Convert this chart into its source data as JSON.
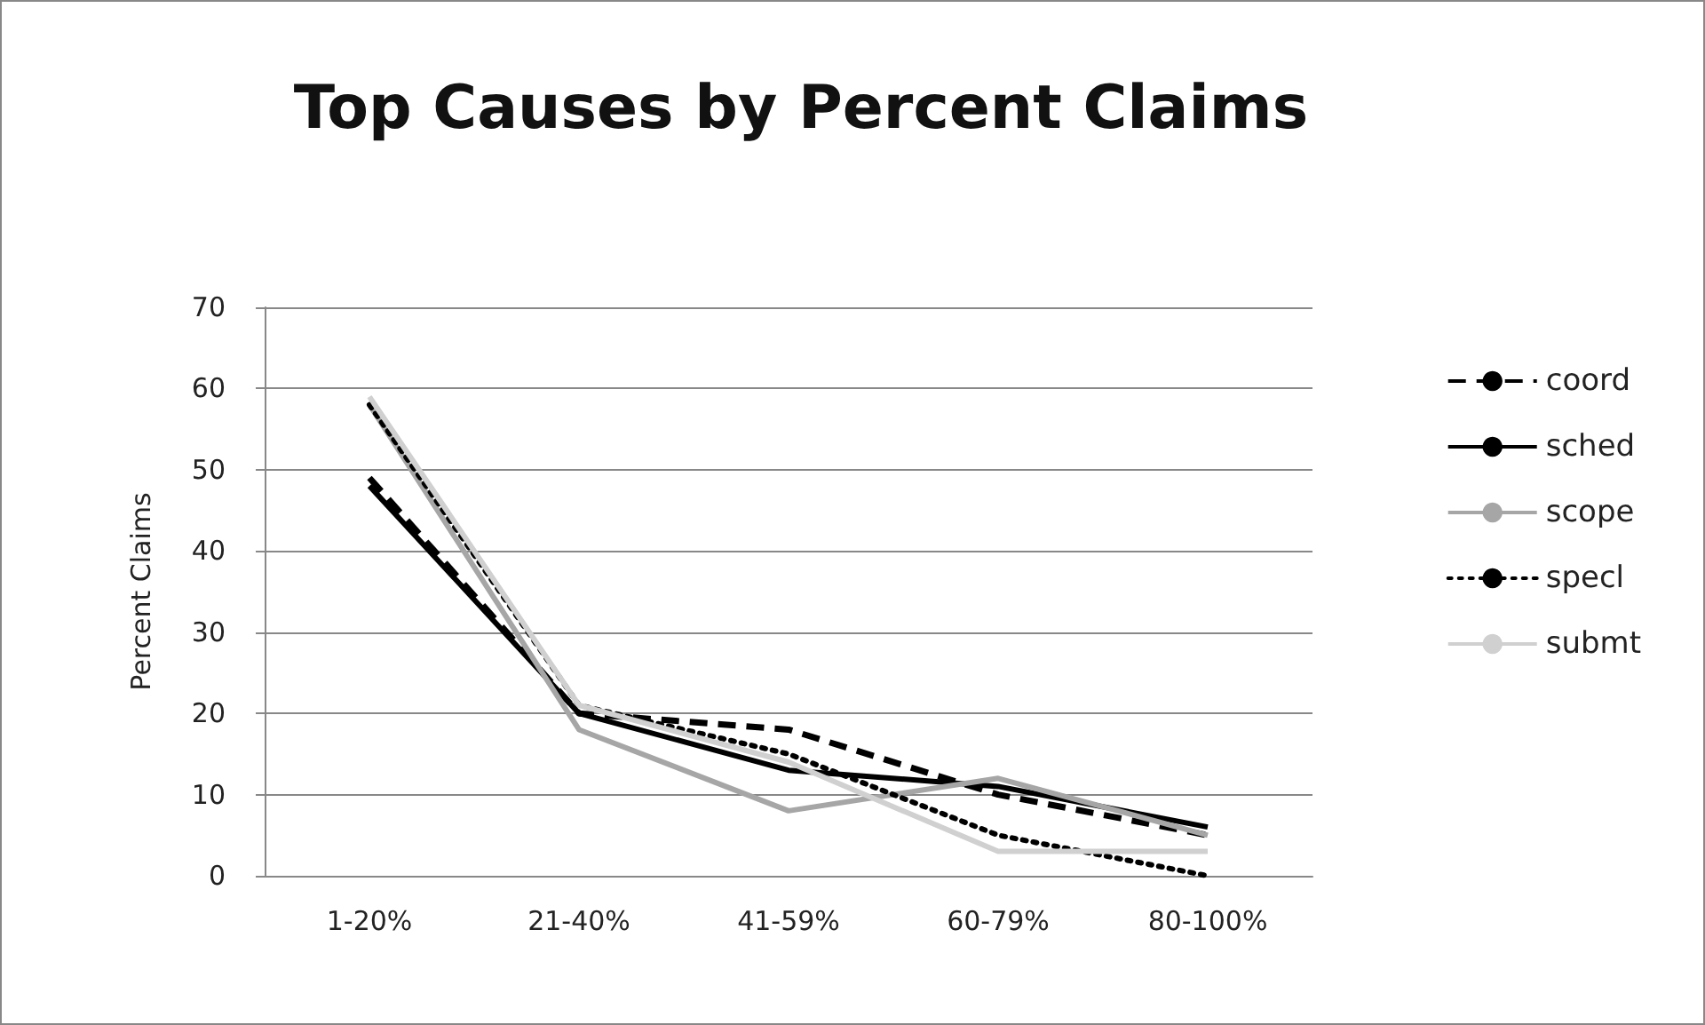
{
  "chart_data": {
    "type": "line",
    "title": "Top Causes by Percent Claims",
    "ylabel": "Percent Claims",
    "categories": [
      "1-20%",
      "21-40%",
      "41-59%",
      "60-79%",
      "80-100%"
    ],
    "series": [
      {
        "name": "coord",
        "color": "#000000",
        "line_style": "dashed",
        "values": [
          49,
          20,
          18,
          10,
          5
        ]
      },
      {
        "name": "sched",
        "color": "#000000",
        "line_style": "solid",
        "values": [
          48,
          20,
          13,
          11,
          6
        ]
      },
      {
        "name": "scope",
        "color": "#a6a6a6",
        "line_style": "solid",
        "values": [
          58,
          18,
          8,
          12,
          5
        ]
      },
      {
        "name": "specl",
        "color": "#000000",
        "line_style": "dotted",
        "values": [
          58,
          21,
          15,
          5,
          0
        ]
      },
      {
        "name": "submt",
        "color": "#d0d0d0",
        "line_style": "solid",
        "values": [
          59,
          21,
          14,
          3,
          3
        ]
      }
    ],
    "ylim": [
      0,
      70
    ],
    "yticks": [
      0,
      10,
      20,
      30,
      40,
      50,
      60,
      70
    ],
    "grid": "y",
    "legend": "right",
    "marker": "none"
  }
}
